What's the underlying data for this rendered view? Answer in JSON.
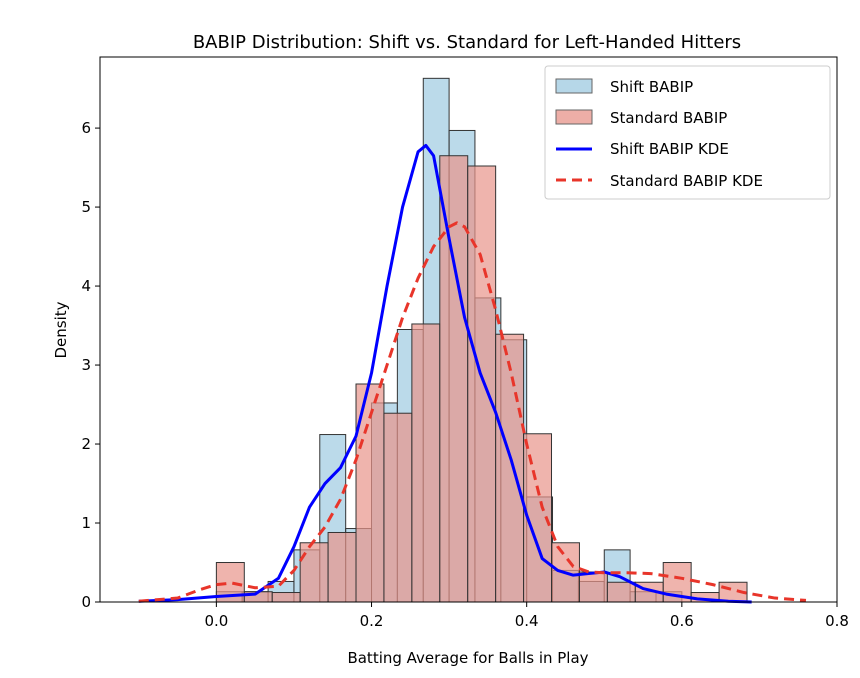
{
  "chart_data": {
    "type": "histogram",
    "title": "BABIP Distribution: Shift vs. Standard for Left-Handed Hitters",
    "xlabel": "Batting Average for Balls in Play",
    "ylabel": "Density",
    "xlim": [
      -0.15,
      0.8
    ],
    "ylim": [
      0,
      6.9
    ],
    "xticks": [
      0.0,
      0.2,
      0.4,
      0.6,
      0.8
    ],
    "xtick_labels": [
      "0.0",
      "0.2",
      "0.4",
      "0.6",
      "0.8"
    ],
    "yticks": [
      0,
      1,
      2,
      3,
      4,
      5,
      6
    ],
    "ytick_labels": [
      "0",
      "1",
      "2",
      "3",
      "4",
      "5",
      "6"
    ],
    "grid": false,
    "legend_position": "top-right",
    "colors": {
      "shift_hist": "#9ecae1",
      "standard_hist": "#e8948a",
      "shift_kde": "#0000ff",
      "standard_kde": "#e8352a",
      "bar_edge": "#333333"
    },
    "series": [
      {
        "name": "Shift BABIP",
        "kind": "histogram",
        "bins": [
          {
            "x0": 0.0,
            "x1": 0.0333,
            "value": 0.13
          },
          {
            "x0": 0.0333,
            "x1": 0.0667,
            "value": 0.13
          },
          {
            "x0": 0.0667,
            "x1": 0.1,
            "value": 0.26
          },
          {
            "x0": 0.1,
            "x1": 0.1333,
            "value": 0.66
          },
          {
            "x0": 0.1333,
            "x1": 0.1667,
            "value": 2.12
          },
          {
            "x0": 0.1667,
            "x1": 0.2,
            "value": 0.93
          },
          {
            "x0": 0.2,
            "x1": 0.2333,
            "value": 2.52
          },
          {
            "x0": 0.2333,
            "x1": 0.2667,
            "value": 3.45
          },
          {
            "x0": 0.2667,
            "x1": 0.3,
            "value": 6.63
          },
          {
            "x0": 0.3,
            "x1": 0.3333,
            "value": 5.97
          },
          {
            "x0": 0.3333,
            "x1": 0.3667,
            "value": 3.85
          },
          {
            "x0": 0.3667,
            "x1": 0.4,
            "value": 3.32
          },
          {
            "x0": 0.4,
            "x1": 0.4333,
            "value": 1.33
          },
          {
            "x0": 0.4333,
            "x1": 0.4667,
            "value": 0.4
          },
          {
            "x0": 0.4667,
            "x1": 0.5,
            "value": 0.26
          },
          {
            "x0": 0.5,
            "x1": 0.5333,
            "value": 0.66
          },
          {
            "x0": 0.5333,
            "x1": 0.5667,
            "value": 0.13
          },
          {
            "x0": 0.5667,
            "x1": 0.6,
            "value": 0.13
          }
        ]
      },
      {
        "name": "Standard BABIP",
        "kind": "histogram",
        "bins": [
          {
            "x0": 0.0,
            "x1": 0.036,
            "value": 0.5
          },
          {
            "x0": 0.036,
            "x1": 0.072,
            "value": 0.13
          },
          {
            "x0": 0.072,
            "x1": 0.108,
            "value": 0.12
          },
          {
            "x0": 0.108,
            "x1": 0.144,
            "value": 0.75
          },
          {
            "x0": 0.144,
            "x1": 0.18,
            "value": 0.88
          },
          {
            "x0": 0.18,
            "x1": 0.216,
            "value": 2.76
          },
          {
            "x0": 0.216,
            "x1": 0.252,
            "value": 2.39
          },
          {
            "x0": 0.252,
            "x1": 0.288,
            "value": 3.52
          },
          {
            "x0": 0.288,
            "x1": 0.324,
            "value": 5.65
          },
          {
            "x0": 0.324,
            "x1": 0.36,
            "value": 5.52
          },
          {
            "x0": 0.36,
            "x1": 0.396,
            "value": 3.39
          },
          {
            "x0": 0.396,
            "x1": 0.432,
            "value": 2.13
          },
          {
            "x0": 0.432,
            "x1": 0.468,
            "value": 0.75
          },
          {
            "x0": 0.468,
            "x1": 0.504,
            "value": 0.38
          },
          {
            "x0": 0.504,
            "x1": 0.54,
            "value": 0.25
          },
          {
            "x0": 0.54,
            "x1": 0.576,
            "value": 0.25
          },
          {
            "x0": 0.576,
            "x1": 0.612,
            "value": 0.5
          },
          {
            "x0": 0.612,
            "x1": 0.648,
            "value": 0.12
          },
          {
            "x0": 0.648,
            "x1": 0.684,
            "value": 0.25
          }
        ]
      },
      {
        "name": "Shift BABIP KDE",
        "kind": "line",
        "style": "solid",
        "points": [
          [
            -0.1,
            0.01
          ],
          [
            -0.05,
            0.03
          ],
          [
            0.0,
            0.07
          ],
          [
            0.05,
            0.1
          ],
          [
            0.08,
            0.3
          ],
          [
            0.1,
            0.7
          ],
          [
            0.12,
            1.2
          ],
          [
            0.14,
            1.5
          ],
          [
            0.16,
            1.7
          ],
          [
            0.18,
            2.1
          ],
          [
            0.2,
            2.9
          ],
          [
            0.22,
            4.0
          ],
          [
            0.24,
            5.0
          ],
          [
            0.26,
            5.7
          ],
          [
            0.27,
            5.78
          ],
          [
            0.28,
            5.65
          ],
          [
            0.3,
            4.6
          ],
          [
            0.32,
            3.6
          ],
          [
            0.34,
            2.9
          ],
          [
            0.36,
            2.4
          ],
          [
            0.38,
            1.8
          ],
          [
            0.4,
            1.1
          ],
          [
            0.42,
            0.55
          ],
          [
            0.44,
            0.4
          ],
          [
            0.46,
            0.34
          ],
          [
            0.48,
            0.36
          ],
          [
            0.5,
            0.38
          ],
          [
            0.52,
            0.32
          ],
          [
            0.55,
            0.17
          ],
          [
            0.58,
            0.1
          ],
          [
            0.62,
            0.04
          ],
          [
            0.66,
            0.01
          ],
          [
            0.69,
            0.0
          ]
        ]
      },
      {
        "name": "Standard BABIP KDE",
        "kind": "line",
        "style": "dashed",
        "points": [
          [
            -0.1,
            0.01
          ],
          [
            -0.05,
            0.05
          ],
          [
            -0.02,
            0.16
          ],
          [
            0.0,
            0.22
          ],
          [
            0.02,
            0.24
          ],
          [
            0.05,
            0.18
          ],
          [
            0.08,
            0.2
          ],
          [
            0.1,
            0.4
          ],
          [
            0.12,
            0.7
          ],
          [
            0.14,
            0.95
          ],
          [
            0.16,
            1.3
          ],
          [
            0.18,
            1.8
          ],
          [
            0.2,
            2.4
          ],
          [
            0.22,
            3.0
          ],
          [
            0.24,
            3.6
          ],
          [
            0.26,
            4.1
          ],
          [
            0.28,
            4.5
          ],
          [
            0.3,
            4.75
          ],
          [
            0.31,
            4.8
          ],
          [
            0.32,
            4.75
          ],
          [
            0.34,
            4.4
          ],
          [
            0.36,
            3.7
          ],
          [
            0.38,
            2.9
          ],
          [
            0.4,
            2.0
          ],
          [
            0.42,
            1.2
          ],
          [
            0.44,
            0.7
          ],
          [
            0.46,
            0.45
          ],
          [
            0.48,
            0.38
          ],
          [
            0.5,
            0.37
          ],
          [
            0.53,
            0.37
          ],
          [
            0.56,
            0.36
          ],
          [
            0.6,
            0.3
          ],
          [
            0.64,
            0.22
          ],
          [
            0.68,
            0.12
          ],
          [
            0.72,
            0.05
          ],
          [
            0.76,
            0.02
          ]
        ]
      }
    ]
  }
}
